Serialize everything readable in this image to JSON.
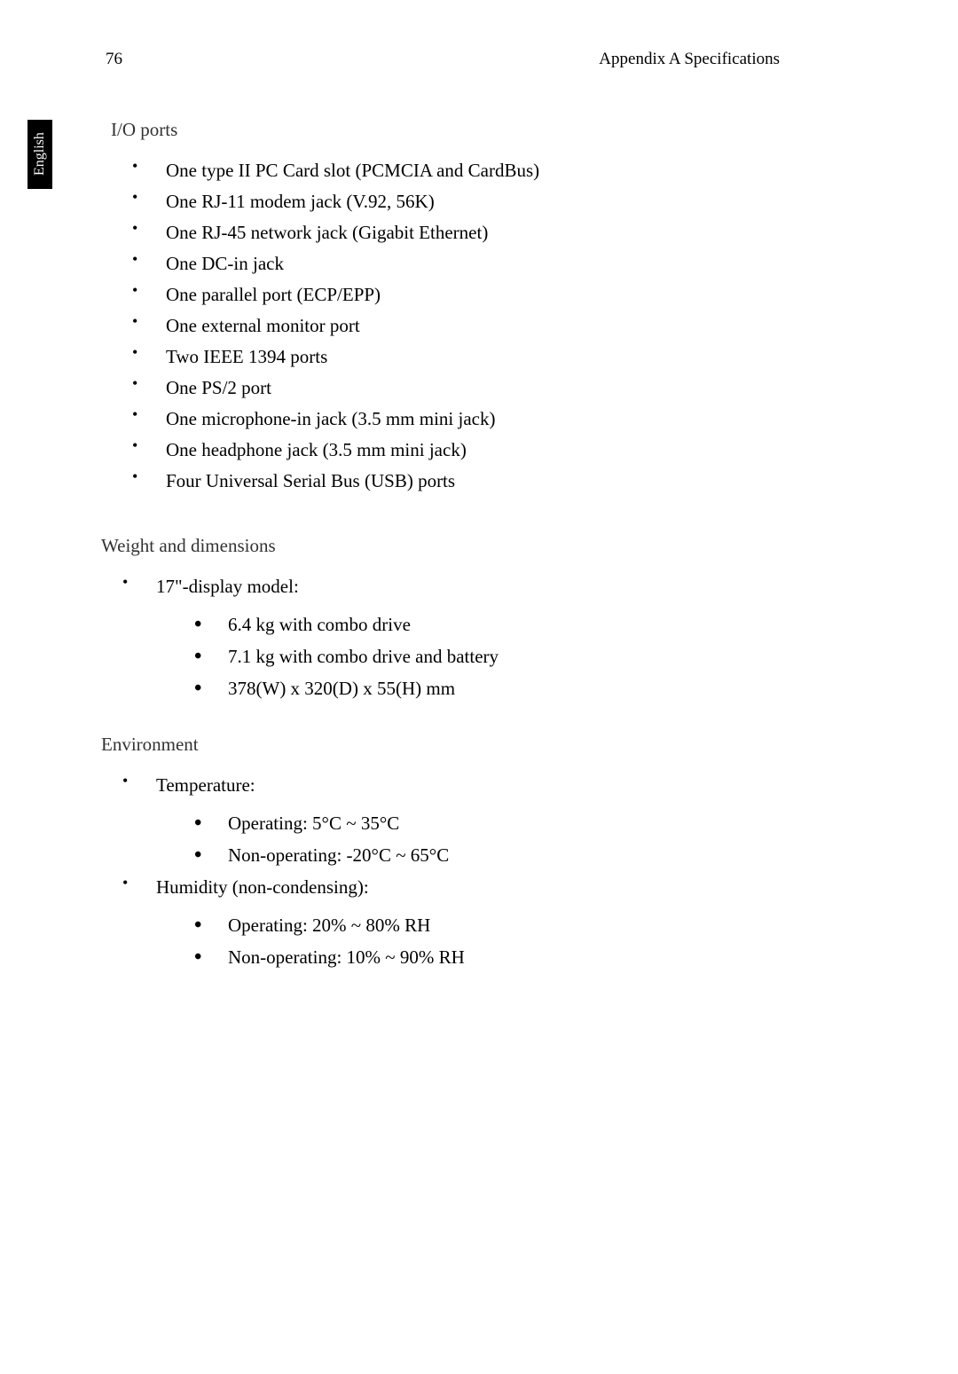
{
  "page": {
    "number": "76",
    "header": "Appendix A Specifications",
    "language_tab": "English"
  },
  "sections": {
    "io_ports": {
      "title": "I/O ports",
      "items": [
        "One type II PC Card slot (PCMCIA and CardBus)",
        "One RJ-11 modem jack (V.92, 56K)",
        "One RJ-45 network jack (Gigabit Ethernet)",
        "One DC-in jack",
        "One parallel port (ECP/EPP)",
        "One external monitor port",
        "Two IEEE 1394 ports",
        "One PS/2 port",
        "One microphone-in jack (3.5 mm mini jack)",
        "One headphone jack (3.5 mm mini jack)",
        "Four Universal Serial Bus (USB) ports"
      ]
    },
    "weight_dimensions": {
      "title": "Weight and dimensions",
      "parent_item": "17\"-display model:",
      "sub_items": [
        "6.4 kg with combo drive",
        "7.1 kg with combo drive and battery",
        "378(W) x 320(D) x 55(H) mm"
      ]
    },
    "environment": {
      "title": "Environment",
      "temp_label": "Temperature:",
      "temp_items": [
        "Operating: 5°C ~ 35°C",
        "Non-operating: -20°C ~ 65°C"
      ],
      "humidity_label": "Humidity (non-condensing):",
      "humidity_items": [
        "Operating: 20% ~ 80% RH",
        "Non-operating: 10% ~ 90% RH"
      ]
    }
  },
  "styling": {
    "background_color": "#ffffff",
    "text_color": "#000000",
    "section_title_color": "#333333",
    "tab_bg": "#000000",
    "tab_text": "#ffffff",
    "body_fontsize": 21,
    "title_fontsize": 21,
    "header_fontsize": 19
  }
}
